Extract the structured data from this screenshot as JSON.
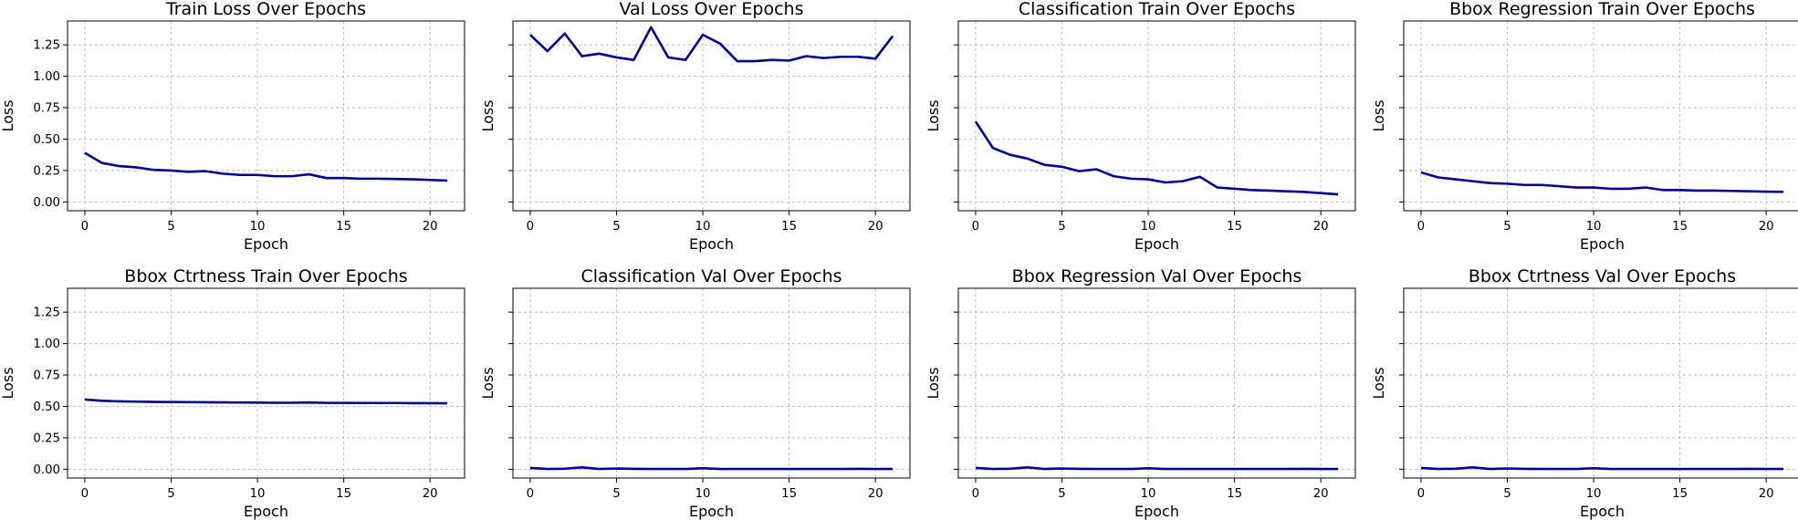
{
  "chart_data": [
    {
      "type": "line",
      "title": "Train Loss Over Epochs",
      "xlabel": "Epoch",
      "ylabel": "Loss",
      "xlim": [
        -1,
        22
      ],
      "ylim": [
        -0.07,
        1.44
      ],
      "xticks": [
        0,
        5,
        10,
        15,
        20
      ],
      "yticks": [
        0.0,
        0.25,
        0.5,
        0.75,
        1.0,
        1.25
      ],
      "show_ytick_labels": true,
      "grid": true,
      "line_color": "#00008b",
      "x": [
        0,
        1,
        2,
        3,
        4,
        5,
        6,
        7,
        8,
        9,
        10,
        11,
        12,
        13,
        14,
        15,
        16,
        17,
        18,
        19,
        20,
        21
      ],
      "y": [
        0.39,
        0.31,
        0.285,
        0.275,
        0.255,
        0.25,
        0.24,
        0.245,
        0.225,
        0.215,
        0.215,
        0.205,
        0.205,
        0.22,
        0.19,
        0.19,
        0.185,
        0.185,
        0.183,
        0.18,
        0.175,
        0.17
      ]
    },
    {
      "type": "line",
      "title": "Val Loss Over Epochs",
      "xlabel": "Epoch",
      "ylabel": "Loss",
      "xlim": [
        -1,
        22
      ],
      "ylim": [
        -0.07,
        1.44
      ],
      "xticks": [
        0,
        5,
        10,
        15,
        20
      ],
      "yticks": [
        0.0,
        0.25,
        0.5,
        0.75,
        1.0,
        1.25
      ],
      "show_ytick_labels": false,
      "grid": true,
      "line_color": "#00008b",
      "x": [
        0,
        1,
        2,
        3,
        4,
        5,
        6,
        7,
        8,
        9,
        10,
        11,
        12,
        13,
        14,
        15,
        16,
        17,
        18,
        19,
        20,
        21
      ],
      "y": [
        1.33,
        1.2,
        1.34,
        1.16,
        1.18,
        1.15,
        1.13,
        1.39,
        1.15,
        1.13,
        1.33,
        1.26,
        1.12,
        1.12,
        1.13,
        1.125,
        1.16,
        1.145,
        1.155,
        1.155,
        1.14,
        1.32
      ]
    },
    {
      "type": "line",
      "title": "Classification Train Over Epochs",
      "xlabel": "Epoch",
      "ylabel": "Loss",
      "xlim": [
        -1,
        22
      ],
      "ylim": [
        -0.07,
        1.44
      ],
      "xticks": [
        0,
        5,
        10,
        15,
        20
      ],
      "yticks": [
        0.0,
        0.25,
        0.5,
        0.75,
        1.0,
        1.25
      ],
      "show_ytick_labels": false,
      "grid": true,
      "line_color": "#00008b",
      "x": [
        0,
        1,
        2,
        3,
        4,
        5,
        6,
        7,
        8,
        9,
        10,
        11,
        12,
        13,
        14,
        15,
        16,
        17,
        18,
        19,
        20,
        21
      ],
      "y": [
        0.64,
        0.43,
        0.375,
        0.345,
        0.295,
        0.28,
        0.245,
        0.26,
        0.205,
        0.185,
        0.18,
        0.155,
        0.165,
        0.2,
        0.115,
        0.105,
        0.095,
        0.09,
        0.085,
        0.08,
        0.07,
        0.06
      ]
    },
    {
      "type": "line",
      "title": "Bbox Regression Train Over Epochs",
      "xlabel": "Epoch",
      "ylabel": "Loss",
      "xlim": [
        -1,
        22
      ],
      "ylim": [
        -0.07,
        1.44
      ],
      "xticks": [
        0,
        5,
        10,
        15,
        20
      ],
      "yticks": [
        0.0,
        0.25,
        0.5,
        0.75,
        1.0,
        1.25
      ],
      "show_ytick_labels": false,
      "grid": true,
      "line_color": "#00008b",
      "x": [
        0,
        1,
        2,
        3,
        4,
        5,
        6,
        7,
        8,
        9,
        10,
        11,
        12,
        13,
        14,
        15,
        16,
        17,
        18,
        19,
        20,
        21
      ],
      "y": [
        0.235,
        0.195,
        0.18,
        0.165,
        0.15,
        0.145,
        0.135,
        0.135,
        0.125,
        0.115,
        0.115,
        0.105,
        0.105,
        0.115,
        0.095,
        0.095,
        0.09,
        0.09,
        0.088,
        0.085,
        0.082,
        0.08
      ]
    },
    {
      "type": "line",
      "title": "Bbox Ctrtness Train Over Epochs",
      "xlabel": "Epoch",
      "ylabel": "Loss",
      "xlim": [
        -1,
        22
      ],
      "ylim": [
        -0.07,
        1.44
      ],
      "xticks": [
        0,
        5,
        10,
        15,
        20
      ],
      "yticks": [
        0.0,
        0.25,
        0.5,
        0.75,
        1.0,
        1.25
      ],
      "show_ytick_labels": true,
      "grid": true,
      "line_color": "#00008b",
      "x": [
        0,
        1,
        2,
        3,
        4,
        5,
        6,
        7,
        8,
        9,
        10,
        11,
        12,
        13,
        14,
        15,
        16,
        17,
        18,
        19,
        20,
        21
      ],
      "y": [
        0.555,
        0.545,
        0.54,
        0.538,
        0.536,
        0.535,
        0.534,
        0.533,
        0.532,
        0.531,
        0.53,
        0.529,
        0.529,
        0.531,
        0.528,
        0.528,
        0.527,
        0.527,
        0.527,
        0.526,
        0.526,
        0.525
      ]
    },
    {
      "type": "line",
      "title": "Classification Val Over Epochs",
      "xlabel": "Epoch",
      "ylabel": "Loss",
      "xlim": [
        -1,
        22
      ],
      "ylim": [
        -0.07,
        1.44
      ],
      "xticks": [
        0,
        5,
        10,
        15,
        20
      ],
      "yticks": [
        0.0,
        0.25,
        0.5,
        0.75,
        1.0,
        1.25
      ],
      "show_ytick_labels": false,
      "grid": true,
      "line_color": "#00008b",
      "x": [
        0,
        1,
        2,
        3,
        4,
        5,
        6,
        7,
        8,
        9,
        10,
        11,
        12,
        13,
        14,
        15,
        16,
        17,
        18,
        19,
        20,
        21
      ],
      "y": [
        0.01,
        0.002,
        0.004,
        0.015,
        0.002,
        0.006,
        0.003,
        0.002,
        0.002,
        0.002,
        0.008,
        0.002,
        0.002,
        0.002,
        0.002,
        0.002,
        0.002,
        0.002,
        0.002,
        0.003,
        0.002,
        0.002
      ]
    },
    {
      "type": "line",
      "title": "Bbox Regression Val Over Epochs",
      "xlabel": "Epoch",
      "ylabel": "Loss",
      "xlim": [
        -1,
        22
      ],
      "ylim": [
        -0.07,
        1.44
      ],
      "xticks": [
        0,
        5,
        10,
        15,
        20
      ],
      "yticks": [
        0.0,
        0.25,
        0.5,
        0.75,
        1.0,
        1.25
      ],
      "show_ytick_labels": false,
      "grid": true,
      "line_color": "#00008b",
      "x": [
        0,
        1,
        2,
        3,
        4,
        5,
        6,
        7,
        8,
        9,
        10,
        11,
        12,
        13,
        14,
        15,
        16,
        17,
        18,
        19,
        20,
        21
      ],
      "y": [
        0.01,
        0.002,
        0.004,
        0.015,
        0.002,
        0.006,
        0.003,
        0.002,
        0.002,
        0.002,
        0.008,
        0.002,
        0.002,
        0.002,
        0.002,
        0.002,
        0.002,
        0.002,
        0.002,
        0.003,
        0.002,
        0.002
      ]
    },
    {
      "type": "line",
      "title": "Bbox Ctrtness Val Over Epochs",
      "xlabel": "Epoch",
      "ylabel": "Loss",
      "xlim": [
        -1,
        22
      ],
      "ylim": [
        -0.07,
        1.44
      ],
      "xticks": [
        0,
        5,
        10,
        15,
        20
      ],
      "yticks": [
        0.0,
        0.25,
        0.5,
        0.75,
        1.0,
        1.25
      ],
      "show_ytick_labels": false,
      "grid": true,
      "line_color": "#00008b",
      "x": [
        0,
        1,
        2,
        3,
        4,
        5,
        6,
        7,
        8,
        9,
        10,
        11,
        12,
        13,
        14,
        15,
        16,
        17,
        18,
        19,
        20,
        21
      ],
      "y": [
        0.01,
        0.002,
        0.004,
        0.015,
        0.002,
        0.006,
        0.003,
        0.002,
        0.002,
        0.002,
        0.008,
        0.002,
        0.002,
        0.002,
        0.002,
        0.002,
        0.002,
        0.002,
        0.002,
        0.003,
        0.002,
        0.002
      ]
    }
  ]
}
